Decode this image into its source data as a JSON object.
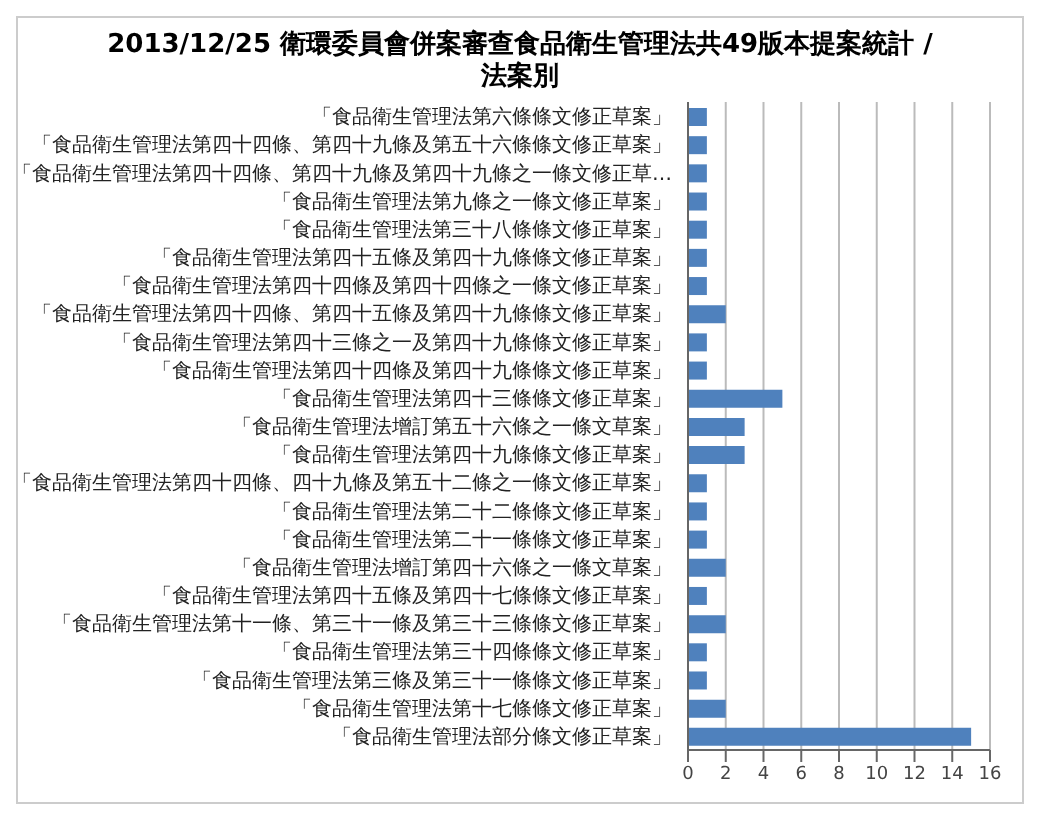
{
  "chart_data": {
    "type": "bar",
    "orientation": "horizontal",
    "title": "2013/12/25 衛環委員會併案審查食品衛生管理法共49版本提案統計 / 法案別",
    "categories": [
      "「食品衛生管理法第六條條文修正草案」",
      "「食品衛生管理法第四十四條、第四十九條及第五十六條條文修正草案」",
      "「食品衛生管理法第四十四條、第四十九條及第四十九條之一條文修正草…",
      "「食品衛生管理法第九條之一條文修正草案」",
      "「食品衛生管理法第三十八條條文修正草案」",
      "「食品衛生管理法第四十五條及第四十九條條文修正草案」",
      "「食品衛生管理法第四十四條及第四十四條之一條文修正草案」",
      "「食品衛生管理法第四十四條、第四十五條及第四十九條條文修正草案」",
      "「食品衛生管理法第四十三條之一及第四十九條條文修正草案」",
      "「食品衛生管理法第四十四條及第四十九條條文修正草案」",
      "「食品衛生管理法第四十三條條文修正草案」",
      "「食品衛生管理法增訂第五十六條之一條文草案」",
      "「食品衛生管理法第四十九條條文修正草案」",
      "「食品衛生管理法第四十四條、四十九條及第五十二條之一條文修正草案」",
      "「食品衛生管理法第二十二條條文修正草案」",
      "「食品衛生管理法第二十一條條文修正草案」",
      "「食品衛生管理法增訂第四十六條之一條文草案」",
      "「食品衛生管理法第四十五條及第四十七條條文修正草案」",
      "「食品衛生管理法第十一條、第三十一條及第三十三條條文修正草案」",
      "「食品衛生管理法第三十四條條文修正草案」",
      "「食品衛生管理法第三條及第三十一條條文修正草案」",
      "「食品衛生管理法第十七條條文修正草案」",
      "「食品衛生管理法部分條文修正草案」"
    ],
    "values": [
      1,
      1,
      1,
      1,
      1,
      1,
      1,
      2,
      1,
      1,
      5,
      3,
      3,
      1,
      1,
      1,
      2,
      1,
      2,
      1,
      1,
      2,
      15
    ],
    "color": "#4f81bd",
    "xlim": [
      0,
      16
    ],
    "xticks": [
      0,
      2,
      4,
      6,
      8,
      10,
      12,
      14,
      16
    ],
    "grid": "x"
  }
}
